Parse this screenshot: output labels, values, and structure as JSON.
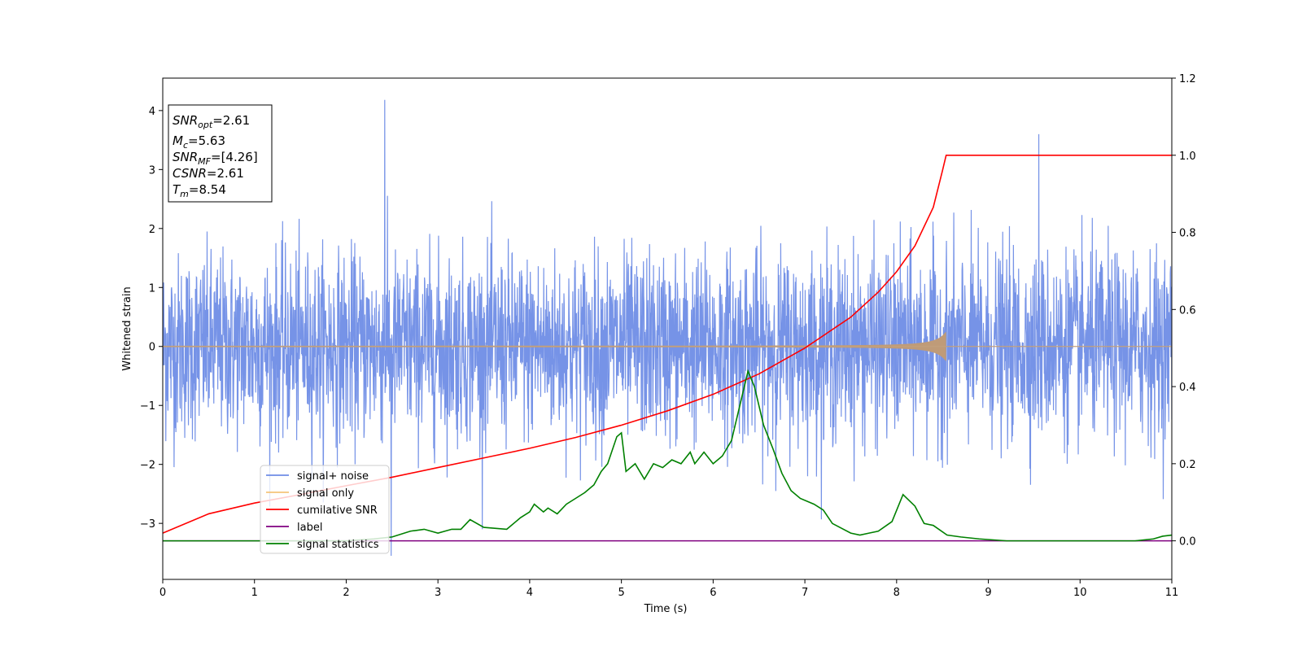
{
  "chart_data": {
    "type": "line",
    "xlabel": "Time (s)",
    "ylabel": "Whitened strain",
    "xlim": [
      0,
      11
    ],
    "ylim": [
      -3.95,
      4.55
    ],
    "y2lim": [
      -0.1,
      1.2
    ],
    "grid": false,
    "legend_position": "lower-left",
    "x_ticks": [
      "0",
      "1",
      "2",
      "3",
      "4",
      "5",
      "6",
      "7",
      "8",
      "9",
      "10",
      "11"
    ],
    "y_ticks": [
      "−3",
      "−2",
      "−1",
      "0",
      "1",
      "2",
      "3",
      "4"
    ],
    "y2_ticks": [
      "0.0",
      "0.2",
      "0.4",
      "0.6",
      "0.8",
      "1.0",
      "1.2"
    ],
    "info_box": [
      {
        "name": "SNR",
        "sub": "opt",
        "value": "=2.61"
      },
      {
        "name": "M",
        "sub": "c",
        "value": "=5.63"
      },
      {
        "name": "SNR",
        "sub": "MF",
        "value": "=[4.26]"
      },
      {
        "name": "CSNR",
        "sub": "",
        "value": "=2.61"
      },
      {
        "name": "T",
        "sub": "m",
        "value": "=8.54"
      }
    ],
    "series": [
      {
        "name": "signal+ noise",
        "color": "#6f8de6",
        "axis": "left",
        "note": "whitened noise, typical range about ±2, spikes up to 4.18 at x≈2.42 and down to −3.55 at x≈2.49"
      },
      {
        "name": "signal only",
        "color": "#f5c47a",
        "axis": "left",
        "chirp_end": 8.54,
        "peak_amplitude": 0.25
      },
      {
        "name": "cumilative SNR",
        "color": "#ff0000",
        "axis": "right",
        "x": [
          0,
          0.5,
          1,
          1.5,
          2,
          2.5,
          3,
          3.5,
          4,
          4.5,
          5,
          5.5,
          6,
          6.5,
          7,
          7.5,
          7.8,
          8.0,
          8.2,
          8.4,
          8.5,
          8.54,
          11
        ],
        "values": [
          0.02,
          0.07,
          0.098,
          0.12,
          0.143,
          0.165,
          0.19,
          0.215,
          0.24,
          0.268,
          0.3,
          0.337,
          0.38,
          0.433,
          0.5,
          0.58,
          0.645,
          0.698,
          0.765,
          0.865,
          0.96,
          1.0,
          1.0
        ]
      },
      {
        "name": "label",
        "color": "#800080",
        "axis": "right",
        "x": [
          0,
          11
        ],
        "values": [
          0,
          0
        ]
      },
      {
        "name": "signal statistics",
        "color": "#008000",
        "axis": "right",
        "x": [
          0,
          1,
          2,
          2.3,
          2.5,
          2.7,
          2.85,
          3.0,
          3.15,
          3.25,
          3.35,
          3.5,
          3.75,
          3.9,
          4.0,
          4.05,
          4.15,
          4.2,
          4.3,
          4.4,
          4.5,
          4.6,
          4.7,
          4.78,
          4.85,
          4.95,
          5.0,
          5.05,
          5.15,
          5.25,
          5.35,
          5.45,
          5.55,
          5.65,
          5.75,
          5.8,
          5.9,
          6.0,
          6.1,
          6.2,
          6.25,
          6.3,
          6.38,
          6.45,
          6.55,
          6.65,
          6.75,
          6.85,
          6.95,
          7.1,
          7.2,
          7.3,
          7.5,
          7.6,
          7.7,
          7.8,
          7.95,
          8.07,
          8.2,
          8.3,
          8.4,
          8.55,
          8.7,
          8.9,
          9.2,
          10,
          10.6,
          10.8,
          10.9,
          11
        ],
        "values": [
          0.0,
          0.0,
          0.0,
          0.005,
          0.01,
          0.025,
          0.03,
          0.02,
          0.03,
          0.03,
          0.055,
          0.035,
          0.03,
          0.06,
          0.075,
          0.095,
          0.075,
          0.085,
          0.07,
          0.095,
          0.11,
          0.125,
          0.145,
          0.18,
          0.2,
          0.27,
          0.28,
          0.18,
          0.2,
          0.16,
          0.2,
          0.19,
          0.21,
          0.2,
          0.23,
          0.2,
          0.23,
          0.2,
          0.22,
          0.26,
          0.31,
          0.36,
          0.44,
          0.4,
          0.3,
          0.24,
          0.175,
          0.13,
          0.11,
          0.095,
          0.08,
          0.045,
          0.02,
          0.015,
          0.02,
          0.025,
          0.05,
          0.12,
          0.09,
          0.045,
          0.04,
          0.015,
          0.01,
          0.005,
          0.0,
          0.0,
          0.0,
          0.005,
          0.012,
          0.015
        ]
      }
    ]
  }
}
